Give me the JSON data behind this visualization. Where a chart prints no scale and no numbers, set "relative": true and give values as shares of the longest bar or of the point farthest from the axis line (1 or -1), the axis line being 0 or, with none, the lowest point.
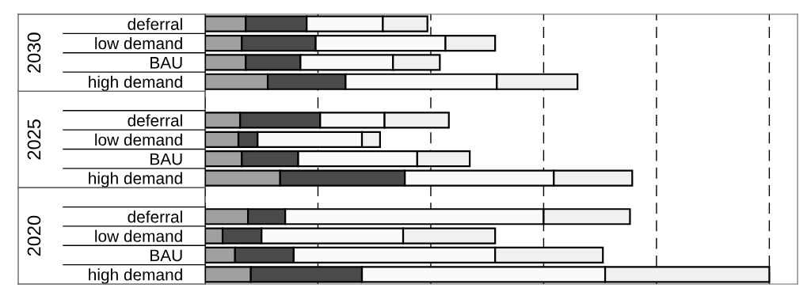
{
  "chart_data": {
    "type": "bar",
    "orientation": "horizontal",
    "stacked": true,
    "relative": true,
    "grid": "x",
    "categories": [
      "deferral",
      "low demand",
      "BAU",
      "high demand",
      null,
      "deferral",
      "low demand",
      "BAU",
      "high demand",
      null,
      "deferral",
      "low demand",
      "BAU",
      "high demand"
    ],
    "annotations": [
      "2030",
      "2025",
      "2020"
    ],
    "series": [
      {
        "color": "#a0a0a0",
        "values": [
          0.072,
          0.065,
          0.072,
          0.111,
          null,
          0.062,
          0.059,
          0.065,
          0.133,
          null,
          0.076,
          0.031,
          0.053,
          0.081
        ]
      },
      {
        "color": "#4a4a4a",
        "values": [
          0.108,
          0.131,
          0.097,
          0.138,
          null,
          0.142,
          0.034,
          0.1,
          0.221,
          null,
          0.066,
          0.069,
          0.104,
          0.197
        ]
      },
      {
        "color": "#fafafa",
        "values": [
          0.135,
          0.23,
          0.164,
          0.268,
          null,
          0.114,
          0.185,
          0.211,
          0.264,
          null,
          0.458,
          0.251,
          0.357,
          0.431
        ]
      },
      {
        "color": "#f0f0f0",
        "values": [
          0.079,
          0.088,
          0.083,
          0.143,
          null,
          0.114,
          0.032,
          0.093,
          0.139,
          null,
          0.153,
          0.163,
          0.191,
          0.291
        ]
      }
    ]
  }
}
